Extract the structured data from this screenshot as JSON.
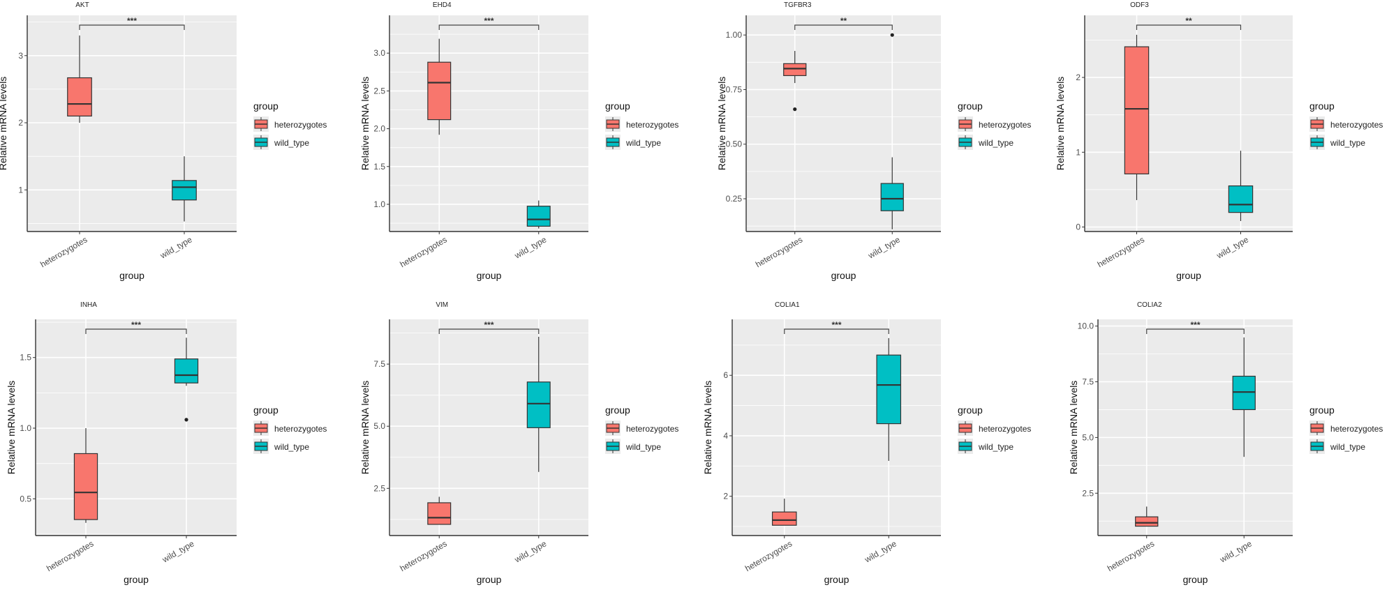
{
  "figure": {
    "legend_title": "group",
    "legend_items": [
      {
        "label": "heterozygotes",
        "color": "#F8766D"
      },
      {
        "label": "wild_type",
        "color": "#00BFC4"
      }
    ],
    "background_panel_color": "#EBEBEB",
    "grid_color": "#FFFFFF"
  },
  "chart_data": [
    {
      "type": "box",
      "title": "AKT",
      "xlabel": "group",
      "ylabel": "Relative mRNA levels",
      "categories": [
        "heterozygotes",
        "wild_type"
      ],
      "yticks": [
        1,
        2,
        3
      ],
      "ytick_labels": [
        "1",
        "2",
        "3"
      ],
      "ylim": [
        0.38,
        3.6
      ],
      "significance": "***",
      "boxes": [
        {
          "group": "heterozygotes",
          "min": 2.0,
          "q1": 2.1,
          "median": 2.28,
          "q3": 2.67,
          "max": 3.3,
          "outliers": []
        },
        {
          "group": "wild_type",
          "min": 0.53,
          "q1": 0.85,
          "median": 1.04,
          "q3": 1.14,
          "max": 1.5,
          "outliers": []
        }
      ]
    },
    {
      "type": "box",
      "title": "EHD4",
      "xlabel": "group",
      "ylabel": "Relative mRNA levels",
      "categories": [
        "heterozygotes",
        "wild_type"
      ],
      "yticks": [
        1.0,
        1.5,
        2.0,
        2.5,
        3.0
      ],
      "ytick_labels": [
        "1.0",
        "1.5",
        "2.0",
        "2.5",
        "3.0"
      ],
      "ylim": [
        0.64,
        3.5
      ],
      "significance": "***",
      "boxes": [
        {
          "group": "heterozygotes",
          "min": 1.92,
          "q1": 2.12,
          "median": 2.61,
          "q3": 2.88,
          "max": 3.19,
          "outliers": []
        },
        {
          "group": "wild_type",
          "min": 0.68,
          "q1": 0.71,
          "median": 0.8,
          "q3": 0.975,
          "max": 1.05,
          "outliers": []
        }
      ]
    },
    {
      "type": "box",
      "title": "TGFBR3",
      "xlabel": "group",
      "ylabel": "Relative mRNA levels",
      "categories": [
        "heterozygotes",
        "wild_type"
      ],
      "yticks": [
        0.25,
        0.5,
        0.75,
        1.0
      ],
      "ytick_labels": [
        "0.25",
        "0.50",
        "0.75",
        "1.00"
      ],
      "ylim": [
        0.1,
        1.09
      ],
      "significance": "**",
      "boxes": [
        {
          "group": "heterozygotes",
          "min": 0.78,
          "q1": 0.814,
          "median": 0.846,
          "q3": 0.869,
          "max": 0.927,
          "outliers": [
            0.66
          ]
        },
        {
          "group": "wild_type",
          "min": 0.11,
          "q1": 0.195,
          "median": 0.25,
          "q3": 0.32,
          "max": 0.44,
          "outliers": [
            1.0
          ]
        }
      ]
    },
    {
      "type": "box",
      "title": "ODF3",
      "xlabel": "group",
      "ylabel": "Relative mRNA levels",
      "categories": [
        "heterozygotes",
        "wild_type"
      ],
      "yticks": [
        0,
        1,
        2
      ],
      "ytick_labels": [
        "0",
        "1",
        "2"
      ],
      "ylim": [
        -0.06,
        2.83
      ],
      "significance": "**",
      "boxes": [
        {
          "group": "heterozygotes",
          "min": 0.36,
          "q1": 0.71,
          "median": 1.58,
          "q3": 2.41,
          "max": 2.57,
          "outliers": []
        },
        {
          "group": "wild_type",
          "min": 0.08,
          "q1": 0.195,
          "median": 0.3,
          "q3": 0.55,
          "max": 1.02,
          "outliers": []
        }
      ]
    },
    {
      "type": "box",
      "title": "INHA",
      "xlabel": "group",
      "ylabel": "Relative mRNA levels",
      "categories": [
        "heterozygotes",
        "wild_type"
      ],
      "yticks": [
        0.5,
        1.0,
        1.5
      ],
      "ytick_labels": [
        "0.5",
        "1.0",
        "1.5"
      ],
      "ylim": [
        0.24,
        1.77
      ],
      "significance": "***",
      "boxes": [
        {
          "group": "heterozygotes",
          "min": 0.33,
          "q1": 0.353,
          "median": 0.545,
          "q3": 0.82,
          "max": 1.0,
          "outliers": []
        },
        {
          "group": "wild_type",
          "min": 1.3,
          "q1": 1.32,
          "median": 1.375,
          "q3": 1.49,
          "max": 1.64,
          "outliers": [
            1.06
          ]
        }
      ]
    },
    {
      "type": "box",
      "title": "VIM",
      "xlabel": "group",
      "ylabel": "Relative mRNA levels",
      "categories": [
        "heterozygotes",
        "wild_type"
      ],
      "yticks": [
        2.5,
        5.0,
        7.5
      ],
      "ytick_labels": [
        "2.5",
        "5.0",
        "7.5"
      ],
      "ylim": [
        0.6,
        9.3
      ],
      "significance": "***",
      "boxes": [
        {
          "group": "heterozygotes",
          "min": 1.05,
          "q1": 1.05,
          "median": 1.32,
          "q3": 1.92,
          "max": 2.16,
          "outliers": []
        },
        {
          "group": "wild_type",
          "min": 3.16,
          "q1": 4.94,
          "median": 5.91,
          "q3": 6.78,
          "max": 8.6,
          "outliers": []
        }
      ]
    },
    {
      "type": "box",
      "title": "COLIA1",
      "xlabel": "group",
      "ylabel": "Relative mRNA levels",
      "categories": [
        "heterozygotes",
        "wild_type"
      ],
      "yticks": [
        2,
        4,
        6
      ],
      "ytick_labels": [
        "2",
        "4",
        "6"
      ],
      "ylim": [
        0.7,
        7.85
      ],
      "significance": "***",
      "boxes": [
        {
          "group": "heterozygotes",
          "min": 1.04,
          "q1": 1.04,
          "median": 1.21,
          "q3": 1.48,
          "max": 1.92,
          "outliers": []
        },
        {
          "group": "wild_type",
          "min": 3.17,
          "q1": 4.4,
          "median": 5.68,
          "q3": 6.67,
          "max": 7.23,
          "outliers": []
        }
      ]
    },
    {
      "type": "box",
      "title": "COLIA2",
      "xlabel": "group",
      "ylabel": "Relative mRNA levels",
      "categories": [
        "heterozygotes",
        "wild_type"
      ],
      "yticks": [
        2.5,
        5.0,
        7.5,
        10.0
      ],
      "ytick_labels": [
        "2.5",
        "5.0",
        "7.5",
        "10.0"
      ],
      "ylim": [
        0.6,
        10.3
      ],
      "significance": "***",
      "boxes": [
        {
          "group": "heterozygotes",
          "min": 1.02,
          "q1": 1.02,
          "median": 1.17,
          "q3": 1.44,
          "max": 1.9,
          "outliers": []
        },
        {
          "group": "wild_type",
          "min": 4.13,
          "q1": 6.25,
          "median": 7.04,
          "q3": 7.75,
          "max": 9.49,
          "outliers": []
        }
      ]
    }
  ]
}
